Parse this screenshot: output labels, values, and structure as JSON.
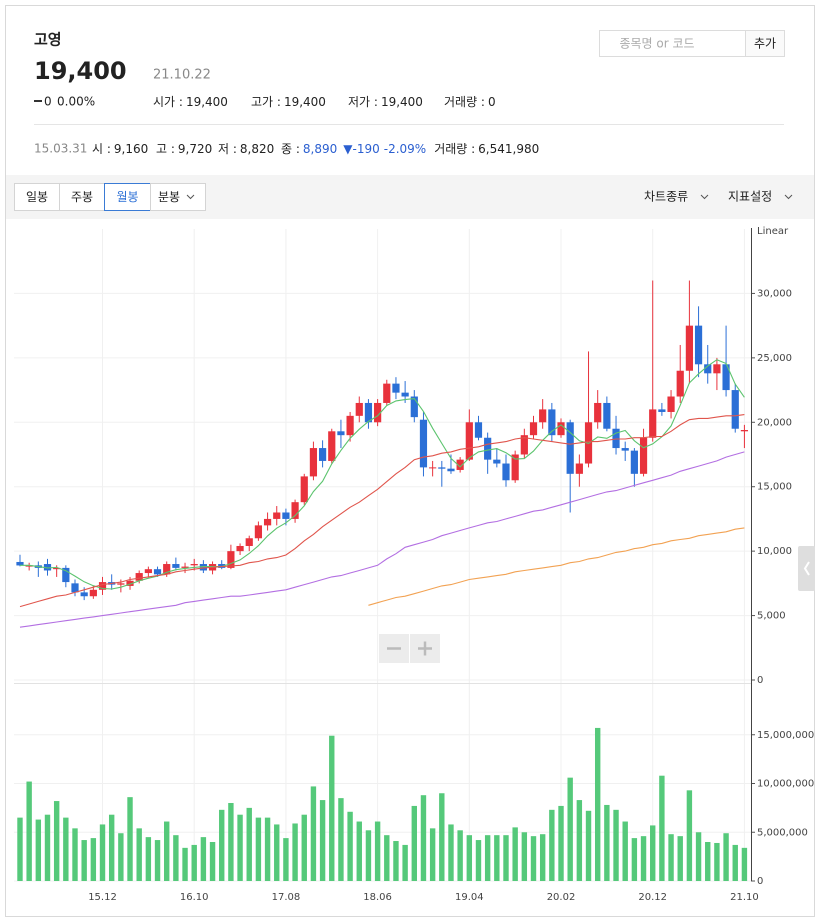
{
  "header": {
    "name": "고영",
    "price": "19,400",
    "date": "21.10.22",
    "change": "0",
    "change_pct": "0.00%",
    "stats": [
      {
        "label": "시가 :",
        "value": "19,400"
      },
      {
        "label": "고가 :",
        "value": "19,400"
      },
      {
        "label": "저가 :",
        "value": "19,400"
      },
      {
        "label": "거래량 :",
        "value": "0"
      }
    ],
    "search_placeholder": "종목명 or 코드",
    "add_button": "추가"
  },
  "info": {
    "date": "15.03.31",
    "items": [
      {
        "label": "시 :",
        "value": "9,160"
      },
      {
        "label": "고 :",
        "value": "9,720"
      },
      {
        "label": "저 :",
        "value": "8,820"
      }
    ],
    "close_label": "종 :",
    "close": "8,890",
    "change": "▼-190",
    "change_pct": "-2.09%",
    "volume_label": "거래량 :",
    "volume": "6,541,980"
  },
  "toolbar": {
    "periods": [
      "일봉",
      "주봉",
      "월봉",
      "분봉"
    ],
    "active_period": 2,
    "chart_type_menu": "차트종류",
    "indicator_menu": "지표설정"
  },
  "chart_data": {
    "type": "candlestick",
    "scale_label": "Linear",
    "categories": [
      null,
      null,
      null,
      null,
      null,
      null,
      null,
      null,
      null,
      "15.12",
      null,
      null,
      null,
      null,
      null,
      null,
      null,
      null,
      null,
      "16.10",
      null,
      null,
      null,
      null,
      null,
      null,
      null,
      null,
      null,
      "17.08",
      null,
      null,
      null,
      null,
      null,
      null,
      null,
      null,
      null,
      "18.06",
      null,
      null,
      null,
      null,
      null,
      null,
      null,
      null,
      null,
      "19.04",
      null,
      null,
      null,
      null,
      null,
      null,
      null,
      null,
      null,
      "20.02",
      null,
      null,
      null,
      null,
      null,
      null,
      null,
      null,
      null,
      "20.12",
      null,
      null,
      null,
      null,
      null,
      null,
      null,
      null,
      null,
      "21.10"
    ],
    "open": [
      9160,
      8800,
      8900,
      9000,
      8600,
      8700,
      7500,
      6800,
      6500,
      7000,
      7600,
      7400,
      7300,
      7700,
      8300,
      8600,
      8200,
      9000,
      8700,
      8900,
      9000,
      8500,
      9000,
      8700,
      10000,
      10400,
      11000,
      12000,
      12500,
      13000,
      12500,
      13800,
      15800,
      18000,
      17000,
      19300,
      19000,
      20500,
      21500,
      20000,
      21500,
      23000,
      22300,
      22000,
      20200,
      16500,
      16500,
      16400,
      16300,
      17100,
      20000,
      18800,
      17100,
      16800,
      15500,
      17500,
      19000,
      20000,
      21000,
      19000,
      20000,
      16000,
      16800,
      20000,
      21500,
      19500,
      18000,
      17800,
      16000,
      18800,
      21000,
      20800,
      22000,
      24000,
      27500,
      24500,
      23800,
      24500,
      22500,
      19300
    ],
    "high": [
      9720,
      9100,
      9200,
      9400,
      8900,
      8900,
      7800,
      7200,
      7300,
      8000,
      8200,
      7800,
      8000,
      8500,
      8800,
      8800,
      9200,
      9500,
      9100,
      9400,
      9300,
      9200,
      9300,
      10500,
      10600,
      11200,
      12300,
      13000,
      13500,
      13300,
      14000,
      16000,
      18500,
      18600,
      19500,
      20200,
      20800,
      22000,
      21800,
      21800,
      23300,
      23500,
      23200,
      22500,
      20800,
      17000,
      17000,
      17500,
      17300,
      21000,
      20500,
      19200,
      18000,
      17500,
      17800,
      19500,
      20500,
      21800,
      21500,
      20300,
      20200,
      17500,
      25500,
      22500,
      22000,
      20500,
      18500,
      18000,
      19500,
      31000,
      21500,
      22500,
      26000,
      31000,
      29000,
      26000,
      25000,
      27500,
      23000,
      19800
    ],
    "low": [
      8820,
      8500,
      8000,
      8100,
      8000,
      7200,
      6500,
      6200,
      6300,
      6600,
      7000,
      6800,
      7000,
      7500,
      8000,
      8000,
      8000,
      8500,
      8300,
      8500,
      8300,
      8200,
      8600,
      8600,
      9700,
      10000,
      10800,
      11600,
      12000,
      12000,
      12200,
      13600,
      15500,
      16500,
      16800,
      18000,
      18500,
      20000,
      19500,
      19700,
      21300,
      21800,
      21500,
      20000,
      15800,
      15800,
      15000,
      16000,
      16100,
      17000,
      18600,
      16000,
      16500,
      15000,
      15300,
      17200,
      18700,
      19500,
      18500,
      18800,
      13000,
      15000,
      16500,
      19500,
      19300,
      17500,
      17000,
      15000,
      15800,
      18500,
      20500,
      20300,
      21500,
      23000,
      23500,
      23000,
      22500,
      22000,
      19200,
      18000
    ],
    "close": [
      8890,
      8900,
      8700,
      8500,
      8700,
      7600,
      6800,
      6500,
      7000,
      7600,
      7400,
      7500,
      7700,
      8300,
      8600,
      8200,
      9000,
      8700,
      8800,
      9000,
      8500,
      9000,
      8700,
      10000,
      10400,
      11000,
      12000,
      12500,
      13000,
      12500,
      13800,
      15800,
      18000,
      17000,
      19300,
      19000,
      20500,
      21500,
      20000,
      21500,
      23000,
      22300,
      22000,
      20400,
      16500,
      16500,
      16400,
      16200,
      17100,
      20000,
      18800,
      17100,
      16800,
      15500,
      17500,
      19000,
      20000,
      21000,
      19000,
      20000,
      16000,
      16800,
      20000,
      21500,
      19500,
      18000,
      17800,
      16000,
      18800,
      21000,
      20800,
      22000,
      24000,
      27500,
      24500,
      23800,
      24500,
      22500,
      19500,
      19400
    ],
    "volume": [
      6500000,
      10200000,
      6300000,
      6800000,
      8200000,
      6500000,
      5400000,
      4200000,
      4400000,
      5800000,
      6800000,
      4900000,
      8600000,
      5400000,
      4500000,
      4200000,
      6100000,
      4700000,
      3400000,
      3700000,
      4500000,
      4000000,
      7300000,
      8000000,
      6800000,
      7500000,
      6500000,
      6500000,
      5800000,
      4400000,
      5900000,
      6800000,
      9700000,
      8300000,
      14900000,
      8500000,
      7100000,
      6100000,
      5200000,
      6100000,
      4700000,
      4100000,
      3700000,
      7700000,
      8800000,
      5400000,
      9000000,
      5800000,
      5200000,
      4700000,
      4200000,
      4700000,
      4700000,
      4700000,
      5500000,
      5000000,
      4600000,
      4800000,
      7300000,
      7700000,
      10600000,
      8300000,
      7200000,
      15700000,
      7800000,
      7300000,
      6100000,
      4400000,
      4600000,
      5700000,
      10800000,
      4800000,
      4600000,
      9300000,
      5000000,
      4000000,
      3900000,
      4900000,
      3700000,
      3400000
    ],
    "up_color": "#e8323c",
    "down_color": "#2b6fd6",
    "volume_color": "#55c97a",
    "moving_averages": [
      {
        "color": "#5cc46e",
        "values": [
          8900,
          8900,
          8800,
          8700,
          8740,
          8480,
          8060,
          7620,
          7320,
          7100,
          7060,
          7200,
          7440,
          7700,
          7900,
          8060,
          8360,
          8560,
          8660,
          8740,
          8800,
          8800,
          8800,
          9040,
          9320,
          9820,
          10420,
          11180,
          11780,
          12200,
          12760,
          13520,
          14620,
          15420,
          16780,
          17820,
          18760,
          19460,
          20060,
          20500,
          21300,
          21660,
          21760,
          21840,
          20840,
          19540,
          18360,
          17200,
          16540,
          17240,
          17700,
          17840,
          17960,
          17640,
          17140,
          17180,
          17760,
          18600,
          19300,
          19800,
          19200,
          18560,
          18360,
          18860,
          18760,
          19160,
          19360,
          18560,
          18020,
          18320,
          18880,
          19720,
          21320,
          23060,
          23760,
          24360,
          24860,
          24560,
          22960,
          21940
        ]
      },
      {
        "color": "#e0554c",
        "values": [
          5700,
          5900,
          6100,
          6300,
          6500,
          6600,
          6800,
          7000,
          7200,
          7400,
          7500,
          7600,
          7800,
          7900,
          8000,
          8100,
          8200,
          8400,
          8500,
          8600,
          8700,
          8750,
          8800,
          8850,
          8900,
          9100,
          9200,
          9400,
          9500,
          9700,
          10200,
          10800,
          11300,
          11900,
          12400,
          12900,
          13400,
          13800,
          14300,
          14800,
          15400,
          16000,
          16500,
          17100,
          17300,
          17400,
          17600,
          17700,
          17900,
          18000,
          18100,
          18300,
          18400,
          18500,
          18700,
          18800,
          18700,
          18600,
          18500,
          18400,
          18300,
          18400,
          18500,
          18500,
          18600,
          18700,
          18700,
          18800,
          18800,
          18900,
          18900,
          19300,
          19800,
          20200,
          20300,
          20300,
          20400,
          20500,
          20500,
          20600
        ]
      },
      {
        "color": "#b36fe2",
        "values": [
          4100,
          4200,
          4300,
          4400,
          4500,
          4600,
          4700,
          4800,
          4900,
          5000,
          5100,
          5200,
          5300,
          5400,
          5500,
          5600,
          5700,
          5800,
          6000,
          6100,
          6200,
          6300,
          6400,
          6500,
          6500,
          6600,
          6700,
          6800,
          6900,
          7000,
          7200,
          7400,
          7600,
          7800,
          8000,
          8100,
          8300,
          8500,
          8700,
          8900,
          9400,
          9800,
          10300,
          10500,
          10700,
          10900,
          11200,
          11400,
          11600,
          11800,
          12000,
          12200,
          12300,
          12500,
          12700,
          12900,
          13100,
          13200,
          13400,
          13600,
          13800,
          14000,
          14200,
          14400,
          14600,
          14700,
          14900,
          15100,
          15300,
          15500,
          15700,
          15900,
          16200,
          16400,
          16600,
          16800,
          17000,
          17300,
          17500,
          17700
        ]
      },
      {
        "color": "#f2a253",
        "values": [
          null,
          null,
          null,
          null,
          null,
          null,
          null,
          null,
          null,
          null,
          null,
          null,
          null,
          null,
          null,
          null,
          null,
          null,
          null,
          null,
          null,
          null,
          null,
          null,
          null,
          null,
          null,
          null,
          null,
          null,
          null,
          null,
          null,
          null,
          null,
          null,
          null,
          null,
          5800,
          6000,
          6200,
          6400,
          6500,
          6700,
          6900,
          7100,
          7300,
          7400,
          7600,
          7800,
          7900,
          8000,
          8100,
          8200,
          8400,
          8500,
          8600,
          8700,
          8800,
          8900,
          9100,
          9200,
          9400,
          9500,
          9700,
          9900,
          10000,
          10200,
          10300,
          10500,
          10600,
          10800,
          10900,
          11000,
          11200,
          11300,
          11400,
          11500,
          11700,
          11800
        ]
      }
    ],
    "ylim": [
      0,
      35000
    ],
    "yticks": [
      0,
      {
        "value": 5000,
        "label": "5,000"
      },
      {
        "value": 10000,
        "label": "10,000"
      },
      {
        "value": 15000,
        "label": "15,000"
      },
      {
        "value": 20000,
        "label": "20,000"
      },
      {
        "value": 25000,
        "label": "25,000"
      },
      {
        "value": 30000,
        "label": "30,000"
      }
    ],
    "volume_ylim": [
      0,
      20000000
    ],
    "volume_yticks": [
      0,
      {
        "value": 5000000,
        "label": "5,000,000"
      },
      {
        "value": 10000000,
        "label": "10,000,000"
      },
      {
        "value": 15000000,
        "label": "15,000,000"
      }
    ],
    "grid": true
  }
}
